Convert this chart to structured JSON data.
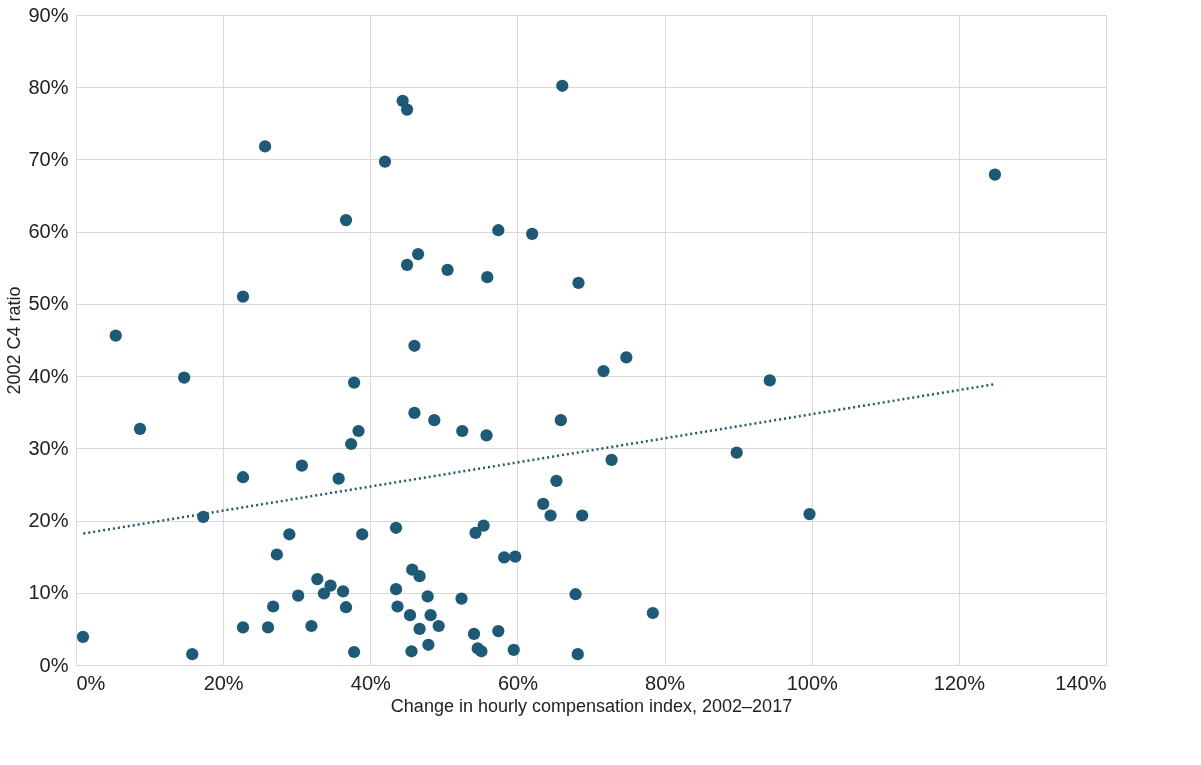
{
  "chart_data": {
    "type": "scatter",
    "xlabel": "Change in hourly compensation index, 2002–2017",
    "ylabel": "2002 C4 ratio",
    "grid": true,
    "marker": "circle",
    "xlim": [
      0,
      140
    ],
    "ylim": [
      0,
      90
    ],
    "xticks": [
      {
        "value": 0,
        "label": "0%"
      },
      {
        "value": 20,
        "label": "20%"
      },
      {
        "value": 40,
        "label": "40%"
      },
      {
        "value": 60,
        "label": "60%"
      },
      {
        "value": 80,
        "label": "80%"
      },
      {
        "value": 100,
        "label": "100%"
      },
      {
        "value": 120,
        "label": "120%"
      },
      {
        "value": 140,
        "label": "140%"
      }
    ],
    "yticks": [
      {
        "value": 0,
        "label": "0%"
      },
      {
        "value": 10,
        "label": "10%"
      },
      {
        "value": 20,
        "label": "20%"
      },
      {
        "value": 30,
        "label": "30%"
      },
      {
        "value": 40,
        "label": "40%"
      },
      {
        "value": 50,
        "label": "50%"
      },
      {
        "value": 60,
        "label": "60%"
      },
      {
        "value": 70,
        "label": "70%"
      },
      {
        "value": 80,
        "label": "80%"
      },
      {
        "value": 90,
        "label": "90%"
      }
    ],
    "series": [
      {
        "color": "#1d5a78",
        "x": [
          0.95,
          5.4,
          8.7,
          14.7,
          15.8,
          17.3,
          22.7,
          22.7,
          22.7,
          25.7,
          26.1,
          26.8,
          27.3,
          29.0,
          30.2,
          30.7,
          32.0,
          32.8,
          33.7,
          34.6,
          35.7,
          36.3,
          36.7,
          36.7,
          37.4,
          37.8,
          37.8,
          38.4,
          38.9,
          42.0,
          43.5,
          43.5,
          43.7,
          44.4,
          45.0,
          45.0,
          45.4,
          45.6,
          45.7,
          46.0,
          46.0,
          46.5,
          46.7,
          46.7,
          47.8,
          47.9,
          48.2,
          48.7,
          49.3,
          50.5,
          52.4,
          52.5,
          54.1,
          54.3,
          54.6,
          55.1,
          55.4,
          55.8,
          55.9,
          57.4,
          57.4,
          58.2,
          59.7,
          59.5,
          62.0,
          63.5,
          64.5,
          65.3,
          65.9,
          66.1,
          67.9,
          68.2,
          68.3,
          68.8,
          71.7,
          72.8,
          74.8,
          78.4,
          89.8,
          94.3,
          99.7,
          124.9
        ],
        "values": [
          3.9,
          45.6,
          32.7,
          39.8,
          1.5,
          20.5,
          51.0,
          26.0,
          5.2,
          71.8,
          5.2,
          8.1,
          15.3,
          18.1,
          9.6,
          27.6,
          5.4,
          11.9,
          9.9,
          11.0,
          25.8,
          10.2,
          8.0,
          61.6,
          30.6,
          39.1,
          1.8,
          32.4,
          18.1,
          69.7,
          19.0,
          10.5,
          8.1,
          78.1,
          76.9,
          55.4,
          6.9,
          1.9,
          13.2,
          44.2,
          34.9,
          56.9,
          12.3,
          5.0,
          9.5,
          2.8,
          6.9,
          33.9,
          5.4,
          54.7,
          9.2,
          32.4,
          4.3,
          18.3,
          2.3,
          1.9,
          19.3,
          31.8,
          53.7,
          4.7,
          60.2,
          14.9,
          15.0,
          2.1,
          59.7,
          22.3,
          20.7,
          25.5,
          33.9,
          80.2,
          9.8,
          1.5,
          52.9,
          20.7,
          40.7,
          28.4,
          42.6,
          7.2,
          29.4,
          39.4,
          20.9,
          67.9
        ]
      },
      {
        "type": "line",
        "color": "#1d5a78",
        "line_style": "dotted",
        "marker": "none",
        "x": [
          1,
          125
        ],
        "values": [
          18.2,
          38.9
        ]
      }
    ]
  }
}
